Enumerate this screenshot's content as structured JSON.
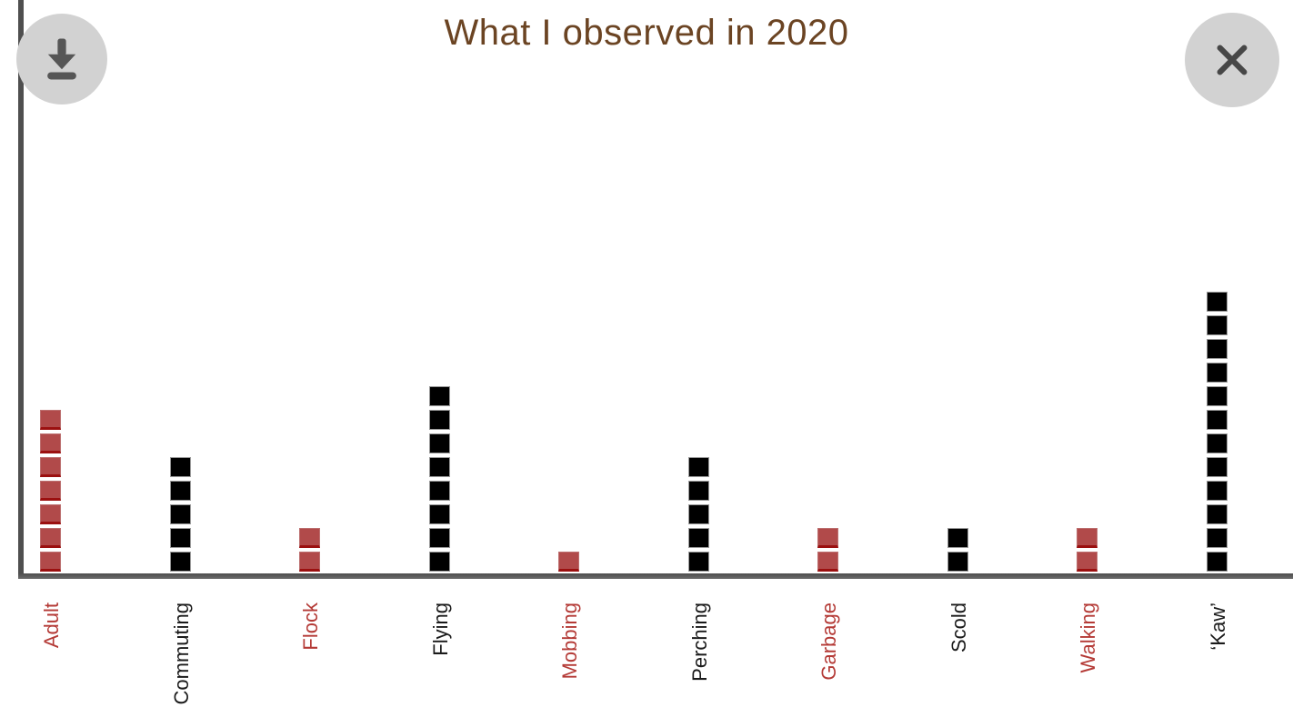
{
  "header": {
    "title": "What I observed in 2020",
    "download_button": {
      "icon": "download-icon"
    },
    "close_button": {
      "icon": "close-icon"
    }
  },
  "chart_data": {
    "type": "bar",
    "subtype": "pictograph-unit-squares",
    "title": "What I observed in 2020",
    "categories": [
      "Adult",
      "Commuting",
      "Flock",
      "Flying",
      "Mobbing",
      "Perching",
      "Garbage",
      "Scold",
      "Walking",
      "‘Kaw’"
    ],
    "values": [
      7,
      5,
      2,
      8,
      1,
      5,
      2,
      2,
      2,
      12
    ],
    "colors": [
      "red",
      "black",
      "red",
      "black",
      "red",
      "black",
      "red",
      "black",
      "red",
      "black"
    ],
    "palette": {
      "red": "#b14a4a",
      "red_edge": "#9b1010",
      "black": "#000000",
      "label_red": "#b43a36",
      "label_black": "#1a1a1a",
      "title_brown": "#6b4423",
      "axis_gray": "#4f4f4f",
      "button_gray": "#d2d2d2"
    },
    "xlabel": "",
    "ylabel": "",
    "grid": false,
    "legend": "none",
    "x_tick_label_rotation_deg": 90,
    "square_unit": 1
  }
}
